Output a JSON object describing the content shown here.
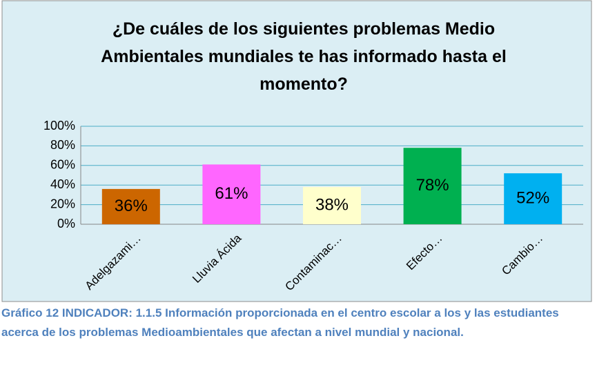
{
  "chart_data": {
    "type": "bar",
    "title": "¿De cuáles de los siguientes problemas Medio Ambientales mundiales te has informado hasta el momento?",
    "categories": [
      "Adelgazami…",
      "Lluvia Ácida",
      "Contaminac…",
      "Efecto…",
      "Cambio…"
    ],
    "values": [
      36,
      61,
      38,
      78,
      52
    ],
    "value_labels": [
      "36%",
      "61%",
      "38%",
      "78%",
      "52%"
    ],
    "colors": [
      "#cc6600",
      "#ff66ff",
      "#ffffcc",
      "#00b050",
      "#00b0f0"
    ],
    "ylim": [
      0,
      100
    ],
    "yticks": [
      {
        "value": 0,
        "label": "0%"
      },
      {
        "value": 20,
        "label": "20%"
      },
      {
        "value": 40,
        "label": "40%"
      },
      {
        "value": 60,
        "label": "60%"
      },
      {
        "value": 80,
        "label": "80%"
      },
      {
        "value": 100,
        "label": "100%"
      }
    ],
    "grid": true
  },
  "caption": "Gráfico 12  INDICADOR: 1.1.5 Información proporcionada en el centro escolar a los y las estudiantes acerca de los problemas Medioambientales que afectan a nivel mundial y nacional."
}
